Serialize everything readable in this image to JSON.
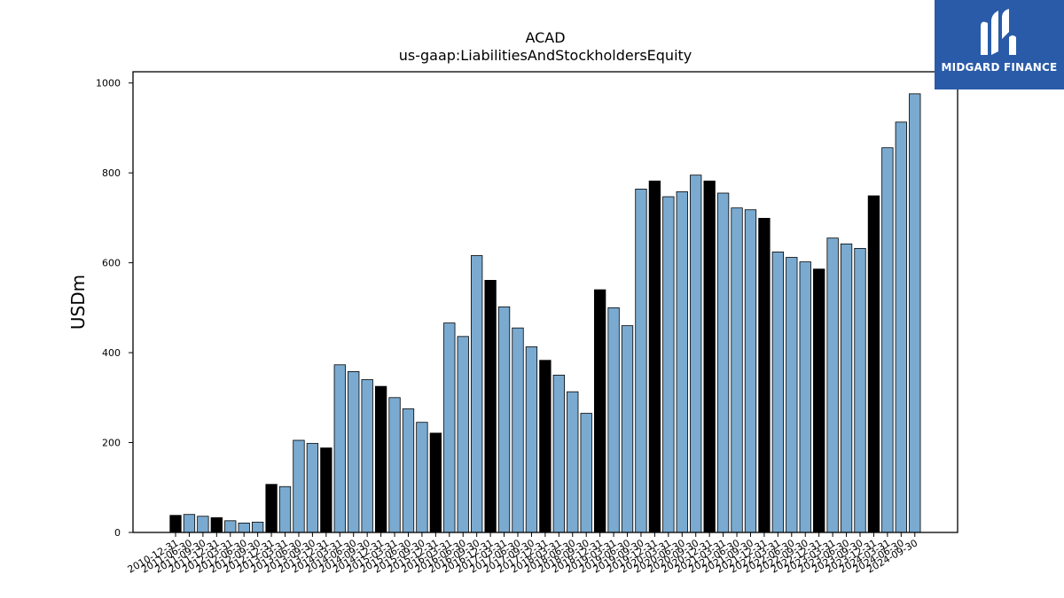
{
  "chart_data": {
    "type": "bar",
    "title": "ACAD",
    "subtitle": "us-gaap:LiabilitiesAndStockholdersEquity",
    "ylabel": "USDm",
    "xlabel": "",
    "ylim": [
      0,
      1025
    ],
    "yticks": [
      0,
      200,
      400,
      600,
      800,
      1000
    ],
    "colors": {
      "quarterly": "#7aaad0",
      "annual": "#000000"
    },
    "categories": [
      "2010-12-31",
      "2011-06-30",
      "2011-09-30",
      "2011-12-31",
      "2012-03-31",
      "2012-06-30",
      "2012-09-30",
      "2012-12-31",
      "2013-03-31",
      "2013-06-30",
      "2013-09-30",
      "2013-12-31",
      "2014-03-31",
      "2014-06-30",
      "2014-09-30",
      "2014-12-31",
      "2015-03-31",
      "2015-06-30",
      "2015-09-30",
      "2015-12-31",
      "2016-03-31",
      "2016-06-30",
      "2016-09-30",
      "2016-12-31",
      "2017-03-31",
      "2017-06-30",
      "2017-09-30",
      "2017-12-31",
      "2018-03-31",
      "2018-06-30",
      "2018-09-30",
      "2018-12-31",
      "2019-03-31",
      "2019-06-30",
      "2019-09-30",
      "2019-12-31",
      "2020-03-31",
      "2020-06-30",
      "2020-09-30",
      "2020-12-31",
      "2021-03-31",
      "2021-06-30",
      "2021-09-30",
      "2021-12-31",
      "2022-03-31",
      "2022-06-30",
      "2022-09-30",
      "2022-12-31",
      "2023-03-31",
      "2023-06-30",
      "2023-09-30",
      "2023-12-31",
      "2024-03-31",
      "2024-06-30",
      "2024-09-30"
    ],
    "values": [
      38,
      40,
      36,
      33,
      26,
      21,
      23,
      107,
      102,
      205,
      198,
      188,
      373,
      358,
      340,
      325,
      300,
      275,
      245,
      221,
      466,
      436,
      616,
      561,
      502,
      455,
      413,
      383,
      350,
      313,
      265,
      540,
      500,
      460,
      764,
      782,
      747,
      758,
      795,
      782,
      755,
      722,
      718,
      699,
      624,
      612,
      602,
      586,
      655,
      642,
      632,
      749,
      856,
      913,
      976
    ],
    "annual": [
      true,
      false,
      false,
      true,
      false,
      false,
      false,
      true,
      false,
      false,
      false,
      true,
      false,
      false,
      false,
      true,
      false,
      false,
      false,
      true,
      false,
      false,
      false,
      true,
      false,
      false,
      false,
      true,
      false,
      false,
      false,
      true,
      false,
      false,
      false,
      true,
      false,
      false,
      false,
      true,
      false,
      false,
      false,
      true,
      false,
      false,
      false,
      true,
      false,
      false,
      false,
      true,
      false,
      false,
      false
    ]
  },
  "logo": {
    "text": "MIDGARD FINANCE"
  }
}
